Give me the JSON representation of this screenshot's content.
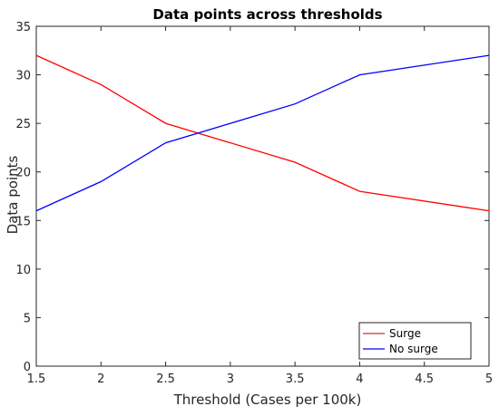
{
  "chart_data": {
    "type": "line",
    "title": "Data points across thresholds",
    "xlabel": "Threshold (Cases per 100k)",
    "ylabel": "Data points",
    "x": [
      1.5,
      2,
      2.5,
      3,
      3.5,
      4,
      5
    ],
    "xlim": [
      1.5,
      5
    ],
    "ylim": [
      0,
      35
    ],
    "xticks": [
      "1.5",
      "2",
      "2.5",
      "3",
      "3.5",
      "4",
      "4.5",
      "5"
    ],
    "yticks": [
      "0",
      "5",
      "10",
      "15",
      "20",
      "25",
      "30",
      "35"
    ],
    "grid": false,
    "legend_position": "bottom-right",
    "series": [
      {
        "name": "Surge",
        "color": "#ff0000",
        "legend_color": "#c0392b",
        "values": [
          32,
          29,
          25,
          23,
          21,
          18,
          16
        ]
      },
      {
        "name": "No surge",
        "color": "#0000ff",
        "legend_color": "#0000ff",
        "values": [
          16,
          19,
          23,
          25,
          27,
          30,
          32
        ]
      }
    ]
  }
}
